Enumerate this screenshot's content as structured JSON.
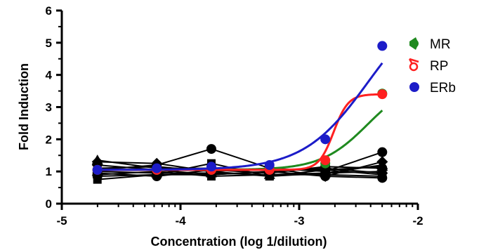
{
  "chart_data": {
    "type": "scatter",
    "xlabel": "Concentration (log 1/dilution)",
    "ylabel": "Fold Induction",
    "xlim": [
      -5,
      -2
    ],
    "ylim": [
      0,
      6
    ],
    "x_ticks": [
      -5,
      -4,
      -3,
      -2
    ],
    "x_tick_labels": [
      "-5",
      "-4",
      "-3",
      "-2"
    ],
    "y_ticks": [
      0,
      1,
      2,
      3,
      4,
      5,
      6
    ],
    "y_tick_labels": [
      "0",
      "1",
      "2",
      "3",
      "4",
      "5",
      "6"
    ],
    "grid": false,
    "legend_position": "right",
    "x": [
      -4.7,
      -4.2,
      -3.74,
      -3.25,
      -2.78,
      -2.3
    ],
    "series": [
      {
        "name": "MR",
        "color": "#1f8a1f",
        "marker": "circle",
        "values": [
          1.05,
          1.05,
          1.05,
          1.08,
          1.25,
          3.42
        ],
        "fit": {
          "bottom": 1.05,
          "top": 3.9,
          "logec50": -2.42,
          "hill": 2.2
        }
      },
      {
        "name": "RP",
        "color": "#ff2020",
        "marker": "circle",
        "values": [
          1.05,
          1.05,
          1.05,
          1.05,
          1.35,
          3.4
        ],
        "fit": {
          "bottom": 1.05,
          "top": 3.4,
          "logec50": -2.71,
          "hill": 7.0
        }
      },
      {
        "name": "ERb",
        "color": "#1c1cc8",
        "marker": "circle",
        "values": [
          1.05,
          1.1,
          1.15,
          1.2,
          2.0,
          4.9
        ],
        "fit": {
          "bottom": 1.05,
          "top": 6.5,
          "logec50": -2.42,
          "hill": 1.6
        }
      }
    ],
    "black_series": [
      {
        "marker": "circle",
        "values": [
          1.05,
          1.2,
          1.7,
          1.1,
          1.0,
          1.6
        ]
      },
      {
        "marker": "diamond",
        "values": [
          1.3,
          1.25,
          1.0,
          1.1,
          0.85,
          1.3
        ]
      },
      {
        "marker": "square",
        "values": [
          0.75,
          0.9,
          1.25,
          0.85,
          0.95,
          1.0
        ]
      },
      {
        "marker": "triangle",
        "values": [
          1.35,
          1.1,
          1.1,
          1.05,
          1.05,
          1.15
        ]
      },
      {
        "marker": "square",
        "values": [
          0.9,
          1.0,
          0.85,
          0.9,
          0.9,
          0.85
        ]
      },
      {
        "marker": "diamond",
        "values": [
          1.2,
          1.05,
          0.9,
          1.0,
          1.1,
          0.95
        ]
      },
      {
        "marker": "circle",
        "values": [
          0.95,
          0.85,
          1.05,
          0.95,
          1.15,
          1.1
        ]
      },
      {
        "marker": "triangle",
        "values": [
          1.0,
          0.95,
          0.95,
          0.9,
          0.95,
          1.2
        ]
      },
      {
        "marker": "square",
        "values": [
          1.1,
          1.15,
          1.0,
          0.85,
          1.05,
          0.9
        ]
      },
      {
        "marker": "circle",
        "values": [
          0.85,
          0.9,
          0.9,
          1.0,
          0.85,
          0.8
        ]
      }
    ]
  }
}
